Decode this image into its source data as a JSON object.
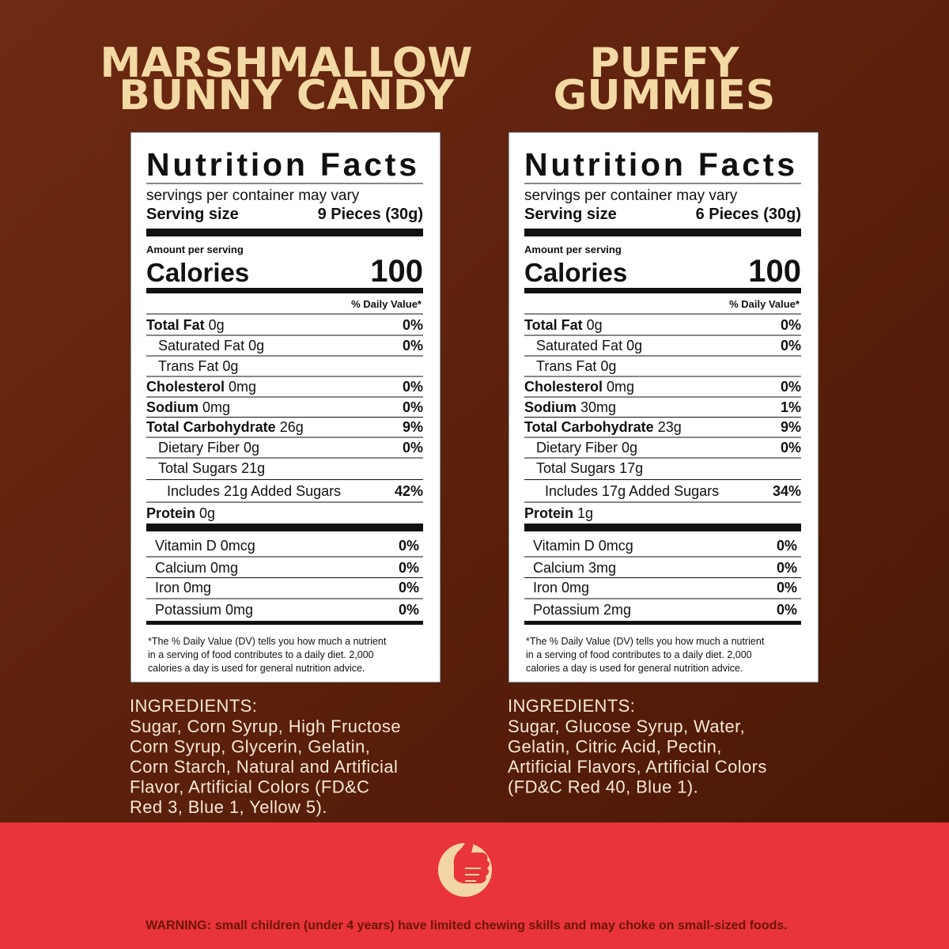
{
  "products": [
    {
      "title": [
        "MARSHMALLOW",
        "BUNNY CANDY"
      ],
      "nutrition": {
        "title": "Nutrition Facts",
        "servings": "servings per container may vary",
        "serving_size_label": "Serving size",
        "serving_size": "9 Pieces (30g)",
        "amount_label": "Amount per serving",
        "calories_label": "Calories",
        "calories": "100",
        "dv_header": "% Daily Value*",
        "rows": [
          {
            "name": "Total Fat",
            "amount": "0g",
            "dv": "0%"
          },
          {
            "name": "Saturated Fat",
            "amount": "0g",
            "dv": "0%"
          },
          {
            "name": "Trans Fat",
            "amount": "0g"
          },
          {
            "name": "Cholesterol",
            "amount": "0mg",
            "dv": "0%"
          },
          {
            "name": "Sodium",
            "amount": "0mg",
            "dv": "0%"
          },
          {
            "name": "Total Carbohydrate",
            "amount": "26g",
            "dv": "9%"
          },
          {
            "name": "Dietary Fiber",
            "amount": "0g",
            "dv": "0%"
          },
          {
            "name": "Total Sugars",
            "amount": "21g"
          },
          {
            "name": "Includes 21g Added Sugars",
            "dv": "42%"
          },
          {
            "name": "Protein",
            "amount": "0g"
          }
        ],
        "vitamins": [
          {
            "name": "Vitamin D 0mcg",
            "dv": "0%"
          },
          {
            "name": "Calcium 0mg",
            "dv": "0%"
          },
          {
            "name": "Iron 0mg",
            "dv": "0%"
          },
          {
            "name": "Potassium 0mg",
            "dv": "0%"
          }
        ],
        "footnote": [
          "*The % Daily Value (DV) tells you how much a nutrient",
          "in a serving of food contributes to a daily diet. 2,000",
          "calories a day is used for general nutrition advice."
        ]
      },
      "ingredients": {
        "heading": "INGREDIENTS:",
        "lines": [
          "Sugar, Corn Syrup, High Fructose",
          "Corn Syrup, Glycerin, Gelatin,",
          "Corn Starch, Natural and Artificial",
          "Flavor, Artificial Colors (FD&C",
          "Red 3, Blue 1, Yellow 5)."
        ]
      }
    },
    {
      "title": [
        "PUFFY",
        "GUMMIES"
      ],
      "nutrition": {
        "title": "Nutrition Facts",
        "servings": "servings per container may vary",
        "serving_size_label": "Serving size",
        "serving_size": "6 Pieces (30g)",
        "amount_label": "Amount per serving",
        "calories_label": "Calories",
        "calories": "100",
        "dv_header": "% Daily Value*",
        "rows": [
          {
            "name": "Total Fat",
            "amount": "0g",
            "dv": "0%"
          },
          {
            "name": "Saturated Fat",
            "amount": "0g",
            "dv": "0%"
          },
          {
            "name": "Trans Fat",
            "amount": "0g"
          },
          {
            "name": "Cholesterol",
            "amount": "0mg",
            "dv": "0%"
          },
          {
            "name": "Sodium",
            "amount": "30mg",
            "dv": "1%"
          },
          {
            "name": "Total Carbohydrate",
            "amount": "23g",
            "dv": "9%"
          },
          {
            "name": "Dietary Fiber",
            "amount": "0g",
            "dv": "0%"
          },
          {
            "name": "Total Sugars",
            "amount": "17g"
          },
          {
            "name": "Includes 17g Added Sugars",
            "dv": "34%"
          },
          {
            "name": "Protein",
            "amount": "1g"
          }
        ],
        "vitamins": [
          {
            "name": "Vitamin D 0mcg",
            "dv": "0%"
          },
          {
            "name": "Calcium 3mg",
            "dv": "0%"
          },
          {
            "name": "Iron 0mg",
            "dv": "0%"
          },
          {
            "name": "Potassium 2mg",
            "dv": "0%"
          }
        ],
        "footnote": [
          "*The % Daily Value (DV) tells you how much a nutrient",
          "in a serving of food contributes to a daily diet. 2,000",
          "calories a day is used for general nutrition advice."
        ]
      },
      "ingredients": {
        "heading": "INGREDIENTS:",
        "lines": [
          "Sugar, Glucose Syrup, Water,",
          "Gelatin, Citric Acid, Pectin,",
          "Artificial Flavors, Artificial Colors",
          "(FD&C Red 40, Blue 1)."
        ]
      }
    }
  ],
  "warning": {
    "label": "WARNING:",
    "text": "small children (under 4 years) have limited chewing skills and may choke on small-sized foods."
  }
}
